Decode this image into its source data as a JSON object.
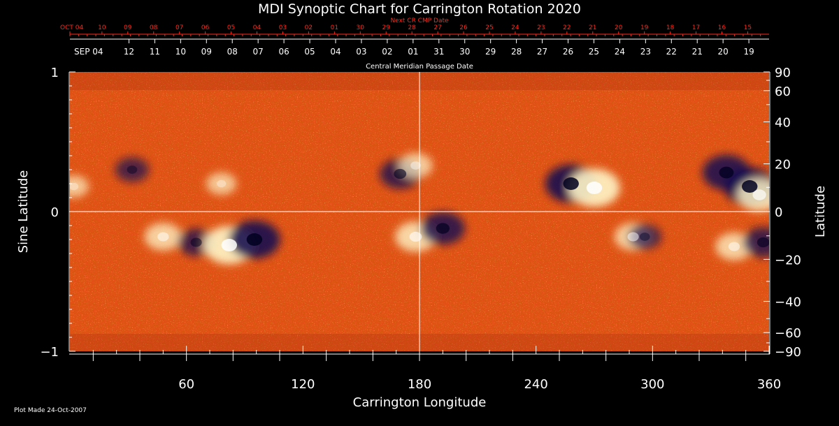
{
  "title": "MDI Synoptic Chart for Carrington Rotation 2020",
  "next_cr_label": "Next CR CMP Date",
  "cmp_label": "Central Meridian Passage Date",
  "footer": "Plot Made 24-Oct-2007",
  "colors": {
    "background": "#000000",
    "map_base": "#e8501a",
    "positive_field": "#fff6c8",
    "negative_field": "#1a1250",
    "next_cr_text": "#ff2a1a",
    "axis_text": "#ffffff"
  },
  "chart_data": {
    "type": "heatmap",
    "title": "MDI Synoptic Chart for Carrington Rotation 2020",
    "xlabel": "Carrington Longitude",
    "ylabel_left": "Sine Latitude",
    "ylabel_right": "Latitude",
    "xlim": [
      0,
      360
    ],
    "ylim": [
      -1,
      1
    ],
    "x_ticks": [
      60,
      120,
      180,
      240,
      300,
      360
    ],
    "y_ticks_left": [
      1,
      0,
      -1
    ],
    "y_ticks_left_labels": [
      "1",
      "0",
      "−1"
    ],
    "y_ticks_right": [
      90,
      60,
      40,
      20,
      0,
      -20,
      -40,
      -60,
      -90
    ],
    "y_ticks_right_labels": [
      "90",
      "60",
      "40",
      "20",
      "0",
      "−20",
      "−40",
      "−60",
      "−90"
    ],
    "crosshair": {
      "longitude": 180,
      "sine_latitude": 0
    },
    "next_cr_dates": [
      {
        "label": "OCT 04",
        "lon": 0
      },
      {
        "label": "10",
        "lon": 16.5
      },
      {
        "label": "09",
        "lon": 29.8
      },
      {
        "label": "08",
        "lon": 43.1
      },
      {
        "label": "07",
        "lon": 56.4
      },
      {
        "label": "06",
        "lon": 69.7
      },
      {
        "label": "05",
        "lon": 83.0
      },
      {
        "label": "04",
        "lon": 96.3
      },
      {
        "label": "03",
        "lon": 109.6
      },
      {
        "label": "02",
        "lon": 122.9
      },
      {
        "label": "01",
        "lon": 136.2
      },
      {
        "label": "30",
        "lon": 149.5
      },
      {
        "label": "29",
        "lon": 162.8
      },
      {
        "label": "28",
        "lon": 176.1
      },
      {
        "label": "27",
        "lon": 189.4
      },
      {
        "label": "26",
        "lon": 202.7
      },
      {
        "label": "25",
        "lon": 216.0
      },
      {
        "label": "24",
        "lon": 229.3
      },
      {
        "label": "23",
        "lon": 242.6
      },
      {
        "label": "22",
        "lon": 255.9
      },
      {
        "label": "21",
        "lon": 269.2
      },
      {
        "label": "20",
        "lon": 282.5
      },
      {
        "label": "19",
        "lon": 295.8
      },
      {
        "label": "18",
        "lon": 309.1
      },
      {
        "label": "17",
        "lon": 322.4
      },
      {
        "label": "16",
        "lon": 335.7
      },
      {
        "label": "15",
        "lon": 349.0
      }
    ],
    "cmp_dates": [
      {
        "label": "SEP 04",
        "lon": 0
      },
      {
        "label": "12",
        "lon": 30.4
      },
      {
        "label": "11",
        "lon": 43.7
      },
      {
        "label": "10",
        "lon": 57.0
      },
      {
        "label": "09",
        "lon": 70.3
      },
      {
        "label": "08",
        "lon": 83.6
      },
      {
        "label": "07",
        "lon": 96.9
      },
      {
        "label": "06",
        "lon": 110.2
      },
      {
        "label": "05",
        "lon": 123.5
      },
      {
        "label": "04",
        "lon": 136.8
      },
      {
        "label": "03",
        "lon": 150.1
      },
      {
        "label": "02",
        "lon": 163.4
      },
      {
        "label": "01",
        "lon": 176.7
      },
      {
        "label": "31",
        "lon": 190.0
      },
      {
        "label": "30",
        "lon": 203.3
      },
      {
        "label": "29",
        "lon": 216.6
      },
      {
        "label": "28",
        "lon": 229.9
      },
      {
        "label": "27",
        "lon": 243.2
      },
      {
        "label": "26",
        "lon": 256.5
      },
      {
        "label": "25",
        "lon": 269.8
      },
      {
        "label": "24",
        "lon": 283.1
      },
      {
        "label": "23",
        "lon": 296.4
      },
      {
        "label": "22",
        "lon": 309.7
      },
      {
        "label": "21",
        "lon": 323.0
      },
      {
        "label": "20",
        "lon": 336.3
      },
      {
        "label": "19",
        "lon": 349.6
      }
    ],
    "active_regions": [
      {
        "lon": 32,
        "sinlat": 0.3,
        "polarity": "negative",
        "strength": 0.5
      },
      {
        "lon": 48,
        "sinlat": -0.18,
        "polarity": "positive",
        "strength": 0.6
      },
      {
        "lon": 65,
        "sinlat": -0.22,
        "polarity": "negative",
        "strength": 0.6
      },
      {
        "lon": 82,
        "sinlat": -0.24,
        "polarity": "positive",
        "strength": 1.0
      },
      {
        "lon": 95,
        "sinlat": -0.2,
        "polarity": "negative",
        "strength": 1.0
      },
      {
        "lon": 78,
        "sinlat": 0.2,
        "polarity": "positive",
        "strength": 0.4
      },
      {
        "lon": 170,
        "sinlat": 0.27,
        "polarity": "negative",
        "strength": 0.7
      },
      {
        "lon": 178,
        "sinlat": 0.33,
        "polarity": "positive",
        "strength": 0.5
      },
      {
        "lon": 178,
        "sinlat": -0.18,
        "polarity": "positive",
        "strength": 0.7
      },
      {
        "lon": 192,
        "sinlat": -0.12,
        "polarity": "negative",
        "strength": 0.8
      },
      {
        "lon": 258,
        "sinlat": 0.2,
        "polarity": "negative",
        "strength": 1.0
      },
      {
        "lon": 270,
        "sinlat": 0.17,
        "polarity": "positive",
        "strength": 1.0
      },
      {
        "lon": 290,
        "sinlat": -0.18,
        "polarity": "positive",
        "strength": 0.6
      },
      {
        "lon": 296,
        "sinlat": -0.18,
        "polarity": "negative",
        "strength": 0.5
      },
      {
        "lon": 338,
        "sinlat": 0.28,
        "polarity": "negative",
        "strength": 0.9
      },
      {
        "lon": 350,
        "sinlat": 0.18,
        "polarity": "negative",
        "strength": 1.0
      },
      {
        "lon": 355,
        "sinlat": 0.12,
        "polarity": "positive",
        "strength": 0.8
      },
      {
        "lon": 342,
        "sinlat": -0.25,
        "polarity": "positive",
        "strength": 0.6
      },
      {
        "lon": 357,
        "sinlat": -0.22,
        "polarity": "negative",
        "strength": 0.7
      },
      {
        "lon": 2,
        "sinlat": 0.18,
        "polarity": "positive",
        "strength": 0.4
      }
    ]
  }
}
